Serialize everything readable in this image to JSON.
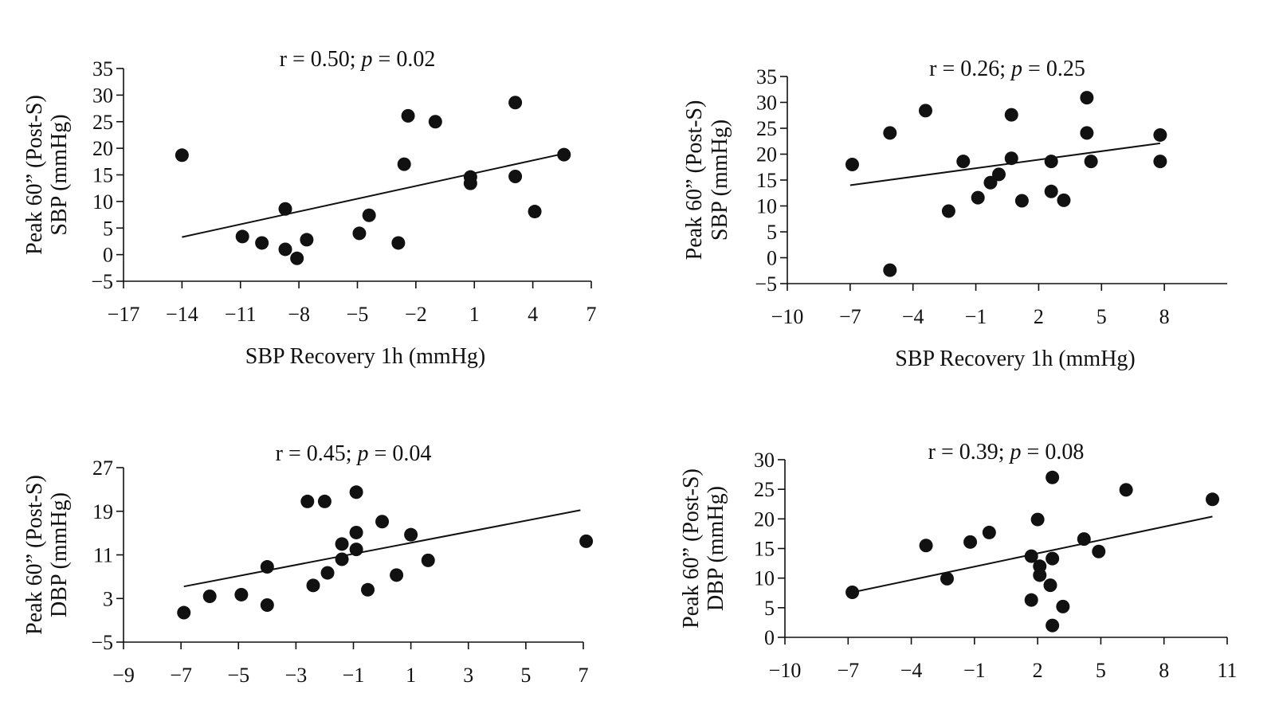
{
  "chart_data": [
    {
      "id": "sbp-left",
      "type": "scatter",
      "title": {
        "prefix": "r = 0.50; ",
        "p_label": "p",
        "suffix": " = 0.02"
      },
      "xlabel": "SBP Recovery 1h (mmHg)",
      "ylabel_line1": "Peak 60” (Post-S)",
      "ylabel_line2": "SBP (mmHg)",
      "xlim": [
        -17,
        7
      ],
      "ylim": [
        -5,
        35
      ],
      "xticks": [
        -17,
        -14,
        -11,
        -8,
        -5,
        -2,
        1,
        4,
        7
      ],
      "xtick_labels": [
        "−17",
        "−14",
        "−11",
        "−8",
        "−5",
        "−2",
        "1",
        "4",
        "7"
      ],
      "yticks": [
        35,
        30,
        25,
        20,
        15,
        10,
        5,
        0,
        -5
      ],
      "ytick_labels": [
        "35",
        "30",
        "25",
        "20",
        "15",
        "10",
        "5",
        "0",
        "−5"
      ],
      "points": [
        [
          -14,
          18.7
        ],
        [
          -10.9,
          3.4
        ],
        [
          -9.9,
          2.2
        ],
        [
          -8.7,
          8.6
        ],
        [
          -8.7,
          1.0
        ],
        [
          -8.1,
          -0.7
        ],
        [
          -7.6,
          2.8
        ],
        [
          -4.9,
          4.0
        ],
        [
          -4.4,
          7.4
        ],
        [
          -2.9,
          2.2
        ],
        [
          -2.6,
          17.0
        ],
        [
          -2.4,
          26.1
        ],
        [
          -1.0,
          25.0
        ],
        [
          0.8,
          14.6
        ],
        [
          0.8,
          13.4
        ],
        [
          3.1,
          28.6
        ],
        [
          3.1,
          14.7
        ],
        [
          4.1,
          8.1
        ],
        [
          5.6,
          18.8
        ]
      ],
      "trendline": [
        [
          -14,
          3.3
        ],
        [
          5.6,
          19.0
        ]
      ]
    },
    {
      "id": "sbp-right",
      "type": "scatter",
      "title": {
        "prefix": "r = 0.26; ",
        "p_label": "p",
        "suffix": " = 0.25"
      },
      "xlabel": "SBP Recovery 1h (mmHg)",
      "ylabel_line1": "Peak 60” (Post-S)",
      "ylabel_line2": "SBP (mmHg)",
      "xlim": [
        -10,
        11
      ],
      "ylim": [
        -5,
        35
      ],
      "xticks": [
        -10,
        -7,
        -4,
        -1,
        2,
        5,
        8
      ],
      "xtick_labels": [
        "−10",
        "−7",
        "−4",
        "−1",
        "2",
        "5",
        "8"
      ],
      "yticks": [
        35,
        30,
        25,
        20,
        15,
        10,
        5,
        0,
        -5
      ],
      "ytick_labels": [
        "35",
        "30",
        "25",
        "20",
        "15",
        "10",
        "5",
        "0",
        "−5"
      ],
      "points": [
        [
          -6.9,
          18.0
        ],
        [
          -5.1,
          24.1
        ],
        [
          -5.1,
          -2.4
        ],
        [
          -3.4,
          28.4
        ],
        [
          -2.3,
          9.0
        ],
        [
          -1.6,
          18.6
        ],
        [
          -0.9,
          11.6
        ],
        [
          -0.3,
          14.5
        ],
        [
          0.1,
          16.1
        ],
        [
          0.7,
          27.6
        ],
        [
          0.7,
          19.2
        ],
        [
          1.2,
          11.0
        ],
        [
          2.6,
          18.6
        ],
        [
          2.6,
          12.8
        ],
        [
          3.2,
          11.1
        ],
        [
          4.3,
          30.9
        ],
        [
          4.3,
          24.1
        ],
        [
          4.5,
          18.6
        ],
        [
          7.8,
          23.7
        ],
        [
          7.8,
          18.6
        ]
      ],
      "trendline": [
        [
          -7,
          14.0
        ],
        [
          7.8,
          22.1
        ]
      ]
    },
    {
      "id": "dbp-left",
      "type": "scatter",
      "title": {
        "prefix": "r = 0.45; ",
        "p_label": "p",
        "suffix": " = 0.04"
      },
      "xlabel": "",
      "ylabel_line1": "Peak 60” (Post-S)",
      "ylabel_line2": "DBP (mmHg)",
      "xlim": [
        -9,
        7
      ],
      "ylim": [
        -5,
        27
      ],
      "xticks": [
        -9,
        -7,
        -5,
        -3,
        -1,
        1,
        3,
        5,
        7
      ],
      "xtick_labels": [
        "−9",
        "−7",
        "−5",
        "−3",
        "−1",
        "1",
        "3",
        "5",
        "7"
      ],
      "yticks": [
        27,
        19,
        11,
        3,
        -5
      ],
      "ytick_labels": [
        "27",
        "19",
        "11",
        "3",
        "−5"
      ],
      "points": [
        [
          -6.9,
          0.4
        ],
        [
          -6.0,
          3.4
        ],
        [
          -4.9,
          3.7
        ],
        [
          -4.0,
          8.8
        ],
        [
          -4.0,
          1.8
        ],
        [
          -2.6,
          20.8
        ],
        [
          -2.4,
          5.4
        ],
        [
          -2.0,
          20.8
        ],
        [
          -1.9,
          7.7
        ],
        [
          -1.4,
          13.0
        ],
        [
          -1.4,
          10.2
        ],
        [
          -0.9,
          22.5
        ],
        [
          -0.9,
          15.1
        ],
        [
          -0.9,
          12.0
        ],
        [
          -0.5,
          4.6
        ],
        [
          0.0,
          17.1
        ],
        [
          0.5,
          7.3
        ],
        [
          1.0,
          14.7
        ],
        [
          1.6,
          10.0
        ],
        [
          7.1,
          13.5
        ]
      ],
      "trendline": [
        [
          -6.9,
          5.2
        ],
        [
          6.9,
          19.2
        ]
      ]
    },
    {
      "id": "dbp-right",
      "type": "scatter",
      "title": {
        "prefix": "r = 0.39; ",
        "p_label": "p",
        "suffix": " = 0.08"
      },
      "xlabel": "",
      "ylabel_line1": "Peak 60” (Post-S)",
      "ylabel_line2": "DBP (mmHg)",
      "xlim": [
        -10,
        11
      ],
      "ylim": [
        0,
        30
      ],
      "xticks": [
        -10,
        -7,
        -4,
        -1,
        2,
        5,
        8,
        11
      ],
      "xtick_labels": [
        "−10",
        "−7",
        "−4",
        "−1",
        "2",
        "5",
        "8",
        "11"
      ],
      "yticks": [
        30,
        25,
        20,
        15,
        10,
        5,
        0
      ],
      "ytick_labels": [
        "30",
        "25",
        "20",
        "15",
        "10",
        "5",
        "0"
      ],
      "points": [
        [
          -6.8,
          7.6
        ],
        [
          -3.3,
          15.5
        ],
        [
          -2.3,
          9.9
        ],
        [
          -1.2,
          16.1
        ],
        [
          -0.3,
          17.7
        ],
        [
          1.7,
          13.7
        ],
        [
          1.7,
          6.3
        ],
        [
          2.0,
          19.9
        ],
        [
          2.1,
          12.0
        ],
        [
          2.1,
          10.5
        ],
        [
          2.6,
          8.8
        ],
        [
          2.7,
          27.0
        ],
        [
          2.7,
          13.3
        ],
        [
          2.7,
          2.0
        ],
        [
          3.2,
          5.2
        ],
        [
          4.2,
          16.6
        ],
        [
          4.9,
          14.5
        ],
        [
          6.2,
          24.9
        ],
        [
          10.3,
          23.3
        ]
      ],
      "trendline": [
        [
          -6.8,
          7.6
        ],
        [
          10.3,
          20.4
        ]
      ]
    }
  ]
}
